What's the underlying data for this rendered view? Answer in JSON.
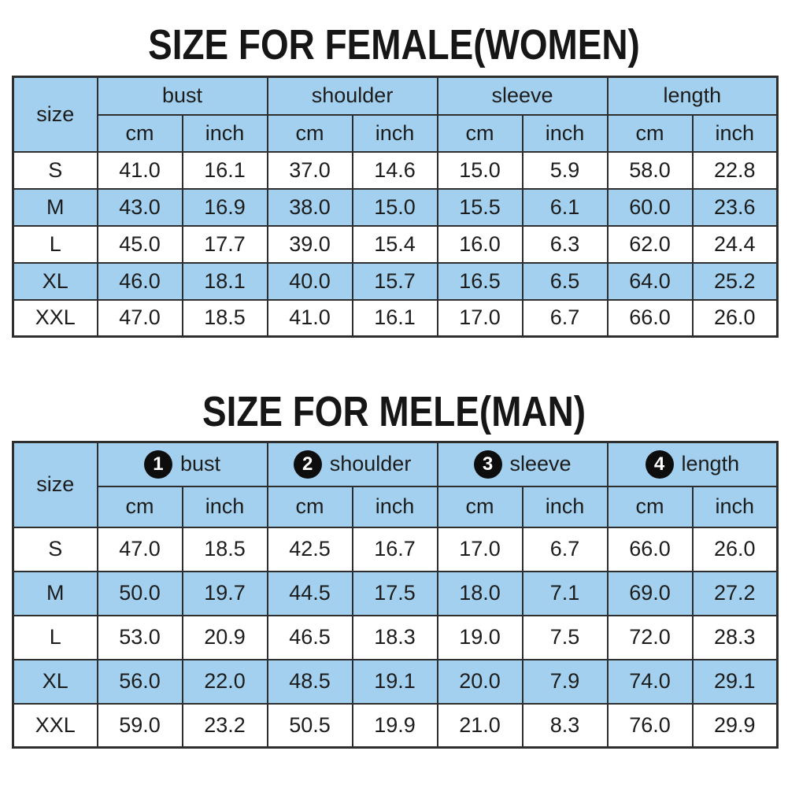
{
  "colors": {
    "accent_blue": "#a2d0ee",
    "border": "#2e2e2e",
    "title_text": "#161616",
    "cell_text": "#1c1c1c",
    "circle_bg": "#0d0d0d",
    "circle_text": "#ffffff"
  },
  "female": {
    "title": "SIZE FOR FEMALE(WOMEN)",
    "size_label": "size",
    "groups": [
      "bust",
      "shoulder",
      "sleeve",
      "length"
    ],
    "units": [
      "cm",
      "inch",
      "cm",
      "inch",
      "cm",
      "inch",
      "cm",
      "inch"
    ],
    "rows": [
      {
        "size": "S",
        "values": [
          "41.0",
          "16.1",
          "37.0",
          "14.6",
          "15.0",
          "5.9",
          "58.0",
          "22.8"
        ]
      },
      {
        "size": "M",
        "values": [
          "43.0",
          "16.9",
          "38.0",
          "15.0",
          "15.5",
          "6.1",
          "60.0",
          "23.6"
        ]
      },
      {
        "size": "L",
        "values": [
          "45.0",
          "17.7",
          "39.0",
          "15.4",
          "16.0",
          "6.3",
          "62.0",
          "24.4"
        ]
      },
      {
        "size": "XL",
        "values": [
          "46.0",
          "18.1",
          "40.0",
          "15.7",
          "16.5",
          "6.5",
          "64.0",
          "25.2"
        ]
      },
      {
        "size": "XXL",
        "values": [
          "47.0",
          "18.5",
          "41.0",
          "16.1",
          "17.0",
          "6.7",
          "66.0",
          "26.0"
        ]
      }
    ]
  },
  "male": {
    "title": "SIZE FOR MELE(MAN)",
    "size_label": "size",
    "groups": [
      {
        "num": "1",
        "label": "bust"
      },
      {
        "num": "2",
        "label": "shoulder"
      },
      {
        "num": "3",
        "label": "sleeve"
      },
      {
        "num": "4",
        "label": "length"
      }
    ],
    "units": [
      "cm",
      "inch",
      "cm",
      "inch",
      "cm",
      "inch",
      "cm",
      "inch"
    ],
    "rows": [
      {
        "size": "S",
        "values": [
          "47.0",
          "18.5",
          "42.5",
          "16.7",
          "17.0",
          "6.7",
          "66.0",
          "26.0"
        ]
      },
      {
        "size": "M",
        "values": [
          "50.0",
          "19.7",
          "44.5",
          "17.5",
          "18.0",
          "7.1",
          "69.0",
          "27.2"
        ]
      },
      {
        "size": "L",
        "values": [
          "53.0",
          "20.9",
          "46.5",
          "18.3",
          "19.0",
          "7.5",
          "72.0",
          "28.3"
        ]
      },
      {
        "size": "XL",
        "values": [
          "56.0",
          "22.0",
          "48.5",
          "19.1",
          "20.0",
          "7.9",
          "74.0",
          "29.1"
        ]
      },
      {
        "size": "XXL",
        "values": [
          "59.0",
          "23.2",
          "50.5",
          "19.9",
          "21.0",
          "8.3",
          "76.0",
          "29.9"
        ]
      }
    ]
  }
}
